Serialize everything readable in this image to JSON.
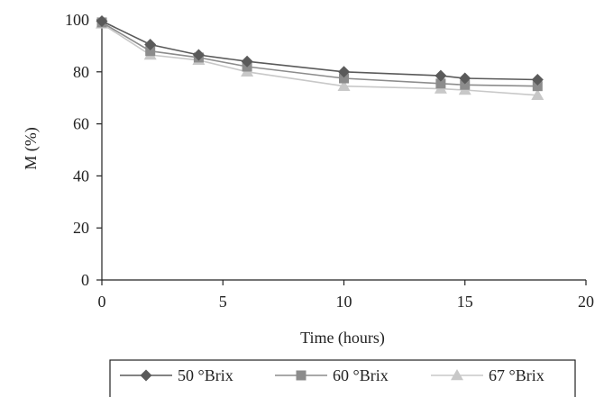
{
  "chart_data": {
    "type": "line",
    "title": "",
    "xlabel": "Time (hours)",
    "ylabel": "M (%)",
    "xlim": [
      0,
      20
    ],
    "ylim": [
      0,
      100
    ],
    "xticks": [
      0,
      5,
      10,
      15,
      20
    ],
    "yticks": [
      0,
      20,
      40,
      60,
      80,
      100
    ],
    "grid": false,
    "legend_position": "bottom",
    "series": [
      {
        "name": "50 °Brix",
        "marker": "diamond",
        "color": "#5a5a5a",
        "x": [
          0,
          2,
          4,
          6,
          10,
          14,
          15,
          18
        ],
        "y": [
          99.5,
          90.5,
          86.5,
          84.0,
          80.0,
          78.5,
          77.5,
          77.0
        ]
      },
      {
        "name": "60 °Brix",
        "marker": "square",
        "color": "#8c8c8c",
        "x": [
          0,
          2,
          4,
          6,
          10,
          14,
          15,
          18
        ],
        "y": [
          99.0,
          88.0,
          85.5,
          82.0,
          77.5,
          75.5,
          75.0,
          74.5
        ]
      },
      {
        "name": "67 °Brix",
        "marker": "triangle",
        "color": "#c8c8c8",
        "x": [
          0,
          2,
          4,
          6,
          10,
          14,
          15,
          18
        ],
        "y": [
          98.5,
          86.5,
          84.5,
          80.0,
          74.5,
          73.5,
          73.0,
          71.0
        ]
      }
    ]
  }
}
